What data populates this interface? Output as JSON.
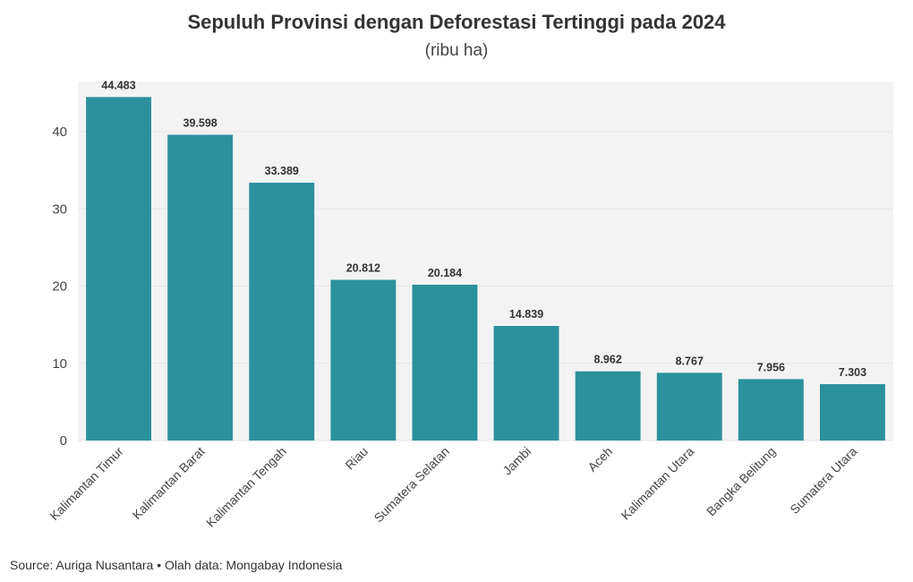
{
  "chart_data": {
    "type": "bar",
    "title": "Sepuluh Provinsi dengan Deforestasi Tertinggi pada 2024",
    "subtitle": "(ribu ha)",
    "categories": [
      "Kalimantan Timur",
      "Kalimantan Barat",
      "Kalimantan Tengah",
      "Riau",
      "Sumatera Selatan",
      "Jambi",
      "Aceh",
      "Kalimantan Utara",
      "Bangka Belitung",
      "Sumatera Utara"
    ],
    "values": [
      44.483,
      39.598,
      33.389,
      20.812,
      20.184,
      14.839,
      8.962,
      8.767,
      7.956,
      7.303
    ],
    "data_labels": [
      "44.483",
      "39.598",
      "33.389",
      "20.812",
      "20.184",
      "14.839",
      "8.962",
      "8.767",
      "7.956",
      "7.303"
    ],
    "yticks": [
      0,
      10,
      20,
      30,
      40
    ],
    "ylim": [
      0,
      46.5
    ],
    "xlabel": "",
    "ylabel": "",
    "bar_color": "#2b919d",
    "plot_background": "#f3f3f3",
    "grid": true,
    "source": "Source: Auriga Nusantara • Olah data: Mongabay Indonesia"
  }
}
